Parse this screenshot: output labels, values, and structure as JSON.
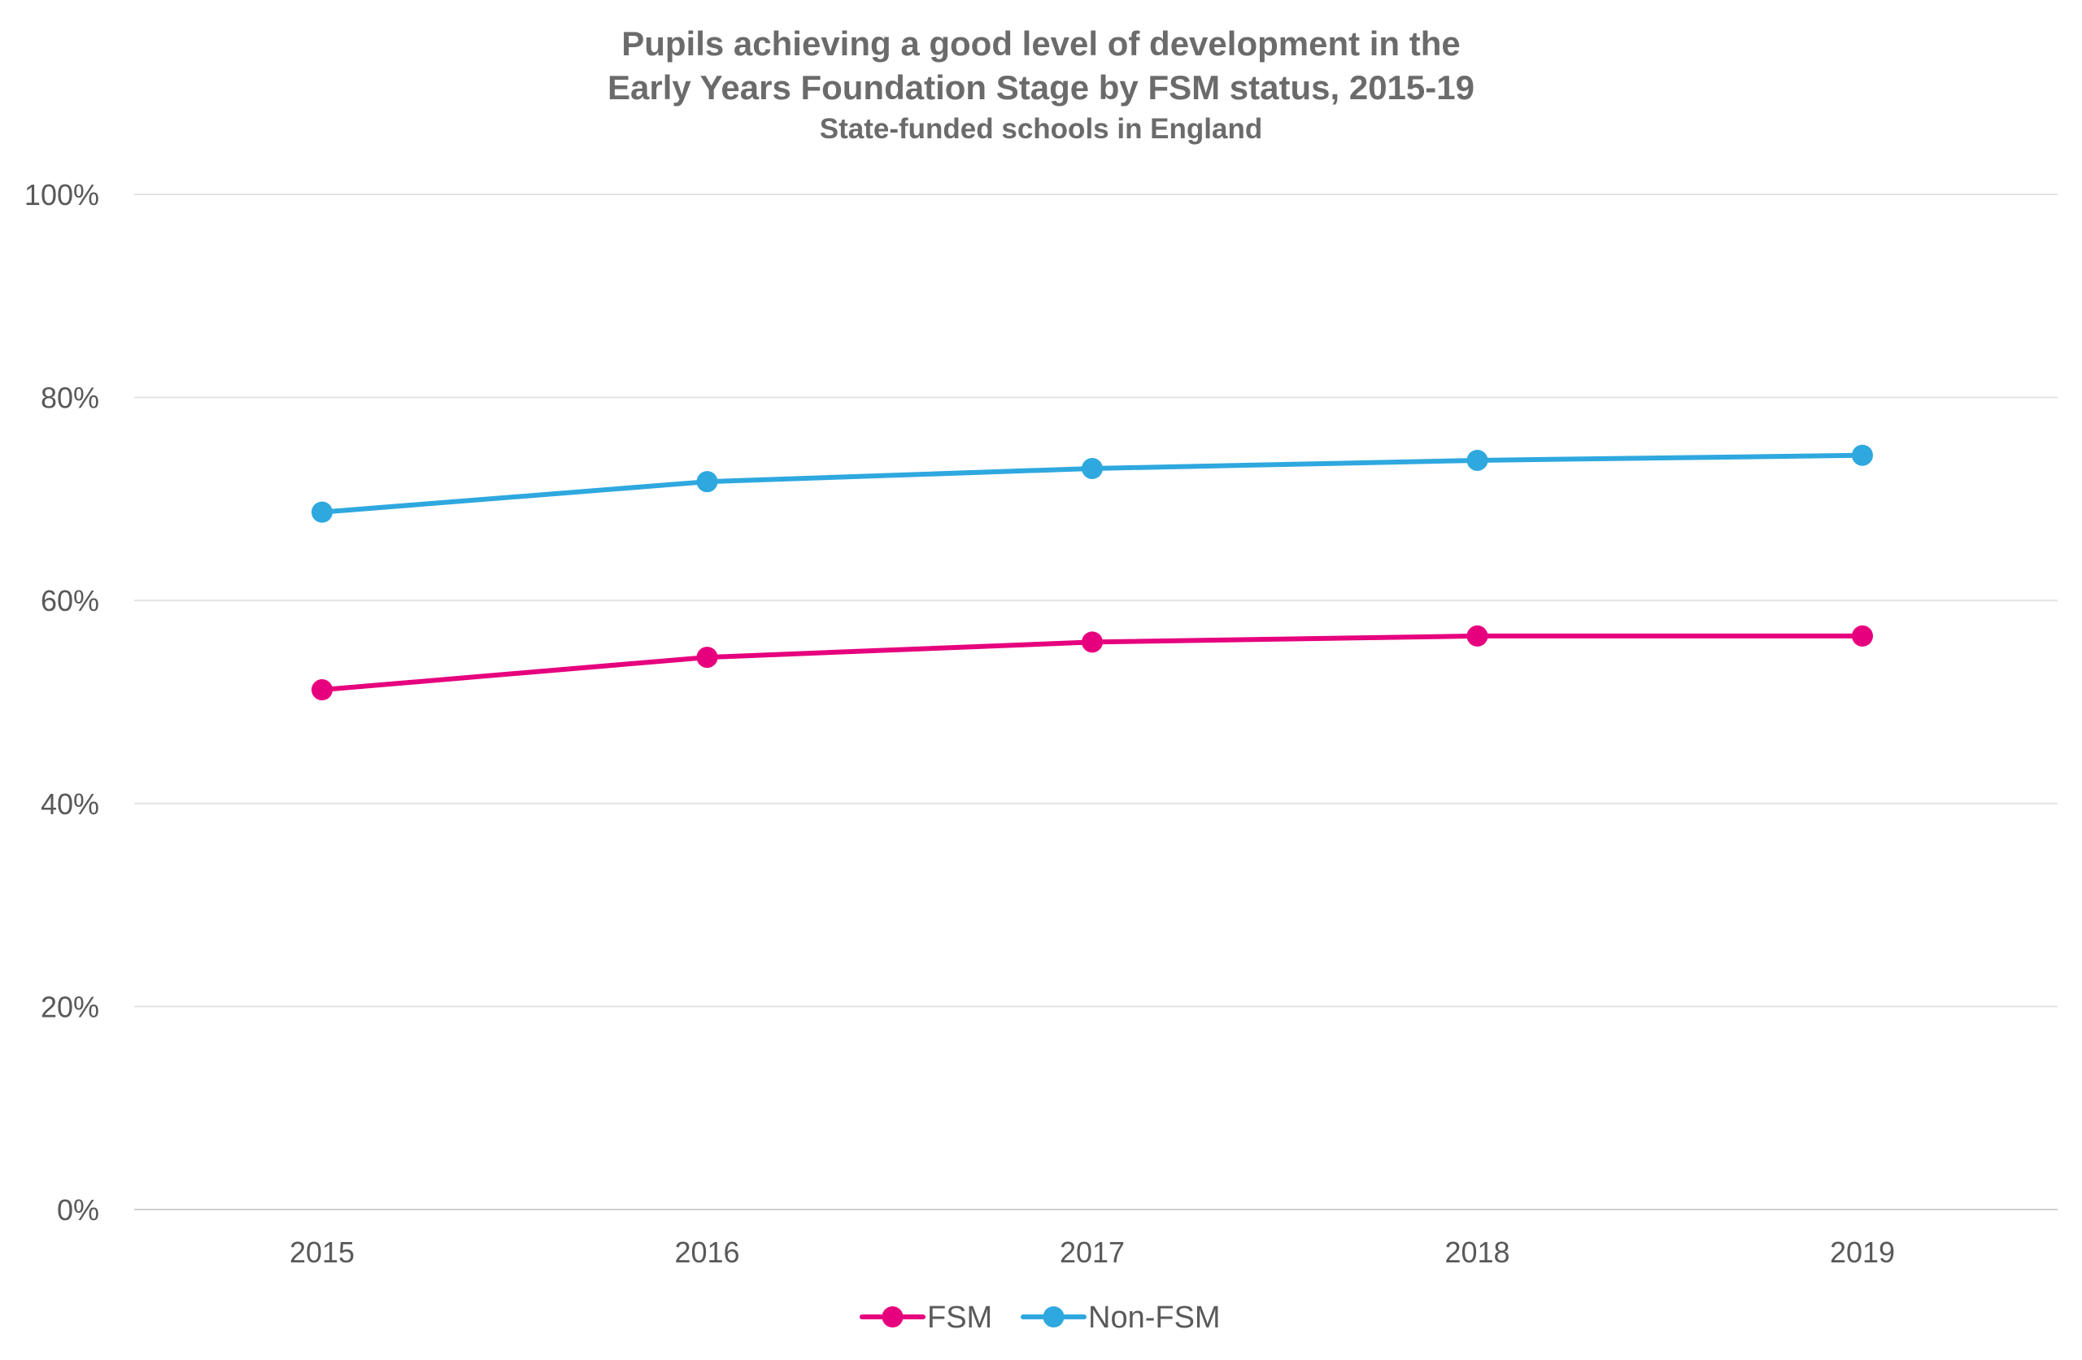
{
  "chart_data": {
    "type": "line",
    "title": "Pupils achieving a good level of development in the",
    "title_line2": "Early Years Foundation Stage by FSM status, 2015-19",
    "subtitle": "State-funded schools in England",
    "xlabel": "",
    "ylabel": "",
    "categories": [
      "2015",
      "2016",
      "2017",
      "2018",
      "2019"
    ],
    "ylim": [
      0,
      100
    ],
    "yticks": [
      "0%",
      "20%",
      "40%",
      "60%",
      "80%",
      "100%"
    ],
    "grid": true,
    "legend_position": "bottom",
    "series": [
      {
        "name": "FSM",
        "color": "#e6007e",
        "values": [
          51.2,
          54.4,
          55.9,
          56.5,
          56.5
        ]
      },
      {
        "name": "Non-FSM",
        "color": "#2ea8df",
        "values": [
          68.7,
          71.7,
          73.0,
          73.8,
          74.3
        ]
      }
    ]
  }
}
